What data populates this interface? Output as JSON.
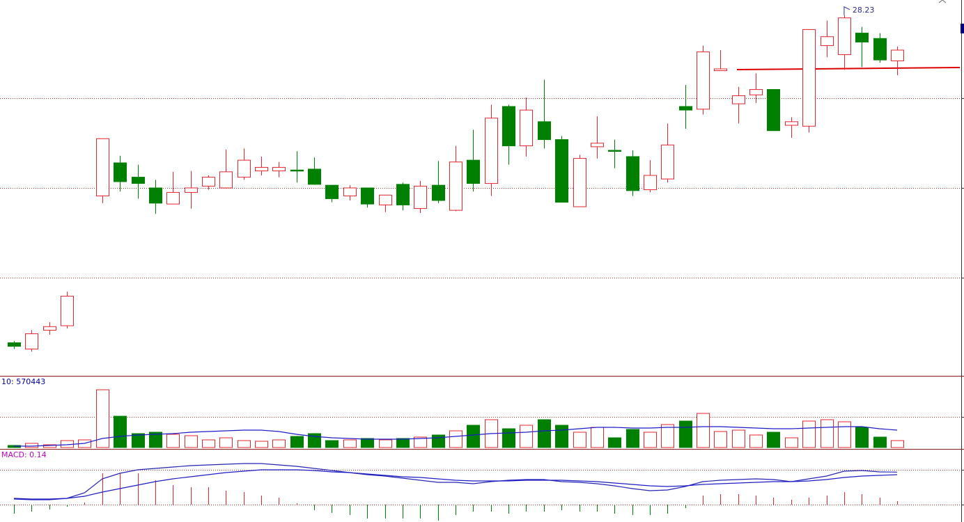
{
  "chart_data": [
    {
      "type": "candlestick",
      "open": [
        24.57,
        24.5,
        24.71,
        24.76,
        null,
        26.21,
        26.58,
        26.42,
        26.3,
        26.12,
        26.25,
        26.32,
        26.3,
        26.42,
        26.49,
        26.49,
        26.5,
        26.51,
        26.33,
        26.21,
        26.3,
        26.11,
        26.34,
        26.07,
        26.33,
        26.05,
        26.61,
        26.35,
        27.21,
        26.77,
        27.04,
        26.84,
        26.09,
        26.76,
        26.72,
        26.65,
        26.28,
        26.4,
        27.21,
        27.18,
        27.61,
        27.24,
        27.34,
        27.4,
        27.0,
        26.99,
        27.89,
        27.79,
        28.03,
        27.97,
        27.72
      ],
      "high": [
        24.59,
        24.71,
        24.8,
        25.14,
        null,
        26.85,
        26.66,
        26.56,
        26.39,
        26.48,
        26.49,
        26.44,
        26.73,
        26.74,
        26.65,
        26.59,
        26.71,
        26.64,
        26.33,
        26.33,
        26.3,
        26.22,
        26.36,
        26.38,
        26.6,
        26.77,
        26.95,
        27.23,
        27.23,
        27.31,
        27.51,
        26.88,
        26.67,
        27.1,
        26.84,
        26.72,
        26.61,
        27.02,
        27.45,
        27.89,
        27.84,
        27.43,
        27.58,
        27.4,
        27.09,
        28.07,
        28.17,
        28.23,
        28.1,
        28.03,
        27.88
      ],
      "low": [
        24.5,
        24.47,
        24.66,
        24.73,
        null,
        26.13,
        26.26,
        26.18,
        26.01,
        26.12,
        26.07,
        26.28,
        26.3,
        26.39,
        26.44,
        26.42,
        26.36,
        26.34,
        26.14,
        26.16,
        26.08,
        26.03,
        26.05,
        26.02,
        26.13,
        26.04,
        26.26,
        26.21,
        26.56,
        26.65,
        26.74,
        26.14,
        26.09,
        26.63,
        26.52,
        26.21,
        26.25,
        26.36,
        26.96,
        27.12,
        27.61,
        27.02,
        27.25,
        26.94,
        26.86,
        26.92,
        27.76,
        27.62,
        27.65,
        27.7,
        27.56
      ],
      "close": [
        24.53,
        24.67,
        24.75,
        25.09,
        null,
        26.85,
        26.37,
        26.35,
        26.13,
        26.25,
        26.3,
        26.42,
        26.48,
        26.61,
        26.53,
        26.53,
        26.49,
        26.34,
        26.18,
        26.3,
        26.12,
        26.22,
        26.11,
        26.32,
        26.16,
        26.59,
        26.35,
        27.08,
        26.77,
        27.17,
        26.84,
        26.14,
        26.63,
        26.8,
        26.71,
        26.27,
        26.44,
        26.78,
        27.17,
        27.82,
        27.63,
        27.33,
        27.4,
        26.94,
        27.04,
        28.07,
        27.99,
        28.2,
        27.93,
        27.73,
        27.84
      ],
      "up_color": "#e8232b",
      "down_color": "#008000",
      "ylim": [
        24.2,
        28.4
      ],
      "grid_values": [
        25.3,
        26.3,
        27.3
      ]
    },
    {
      "type": "volume",
      "label": "10: 570443",
      "values": [
        68400,
        136800,
        91200,
        228000,
        250800,
        1892400,
        1026000,
        456000,
        501600,
        433200,
        387600,
        250800,
        319200,
        228000,
        205200,
        250800,
        364800,
        456000,
        228000,
        250800,
        296400,
        250800,
        296400,
        342000,
        410400,
        547200,
        729600,
        912000,
        615600,
        729600,
        912000,
        729600,
        501600,
        661200,
        319200,
        592800,
        501600,
        752400,
        866400,
        1117200,
        524400,
        570000,
        410400,
        501600,
        319200,
        866400,
        912000,
        843600,
        661200,
        342000,
        228000
      ],
      "ma": [
        45600,
        45600,
        68400,
        91200,
        136800,
        296400,
        364800,
        410400,
        433200,
        456000,
        501600,
        524400,
        547200,
        570000,
        570000,
        524400,
        433200,
        364800,
        319200,
        296400,
        273600,
        273600,
        273600,
        296400,
        319200,
        364800,
        410400,
        456000,
        478800,
        501600,
        547200,
        570000,
        615600,
        661200,
        661200,
        638400,
        638400,
        661200,
        661200,
        684000,
        684000,
        661200,
        638400,
        615600,
        615600,
        638400,
        661200,
        684000,
        684000,
        615600,
        570443
      ],
      "ma_color": "#1c1cc8",
      "ylim": [
        0,
        2280000
      ],
      "grid_values": [
        1000000
      ]
    },
    {
      "type": "macd",
      "label": "MACD: 0.14",
      "histogram": [
        -0.039,
        -0.03,
        -0.021,
        -0.009,
        0.009,
        0.135,
        0.135,
        0.135,
        0.105,
        0.084,
        0.075,
        0.075,
        0.06,
        0.054,
        0.039,
        0.03,
        0.006,
        -0.024,
        -0.036,
        -0.045,
        -0.06,
        -0.06,
        -0.06,
        -0.06,
        -0.069,
        -0.045,
        -0.03,
        -0.03,
        -0.039,
        -0.03,
        -0.03,
        -0.024,
        -0.03,
        -0.03,
        -0.039,
        -0.045,
        -0.045,
        -0.039,
        -0.015,
        0.039,
        0.045,
        0.045,
        0.039,
        0.03,
        0.021,
        0.03,
        0.039,
        0.054,
        0.045,
        0.03,
        0.015
      ],
      "dif": [
        0.027,
        0.024,
        0.024,
        0.027,
        0.051,
        0.111,
        0.135,
        0.15,
        0.156,
        0.162,
        0.168,
        0.171,
        0.174,
        0.177,
        0.177,
        0.171,
        0.165,
        0.156,
        0.147,
        0.138,
        0.129,
        0.123,
        0.114,
        0.105,
        0.096,
        0.096,
        0.09,
        0.099,
        0.105,
        0.108,
        0.108,
        0.099,
        0.096,
        0.09,
        0.081,
        0.069,
        0.06,
        0.063,
        0.078,
        0.099,
        0.105,
        0.108,
        0.111,
        0.108,
        0.099,
        0.111,
        0.123,
        0.144,
        0.147,
        0.141,
        0.14
      ],
      "dea": [
        0.024,
        0.021,
        0.021,
        0.027,
        0.036,
        0.054,
        0.069,
        0.084,
        0.099,
        0.111,
        0.12,
        0.129,
        0.138,
        0.144,
        0.15,
        0.15,
        0.15,
        0.147,
        0.141,
        0.138,
        0.132,
        0.126,
        0.12,
        0.117,
        0.111,
        0.105,
        0.102,
        0.102,
        0.102,
        0.105,
        0.105,
        0.105,
        0.102,
        0.099,
        0.093,
        0.087,
        0.081,
        0.078,
        0.081,
        0.087,
        0.09,
        0.093,
        0.096,
        0.099,
        0.099,
        0.102,
        0.108,
        0.117,
        0.123,
        0.126,
        0.129
      ],
      "dif_color": "#2424b4",
      "dea_color": "#1c1cc8",
      "ylim": [
        -0.07,
        0.225
      ],
      "grid_values": [
        0,
        0.15
      ]
    }
  ]
}
